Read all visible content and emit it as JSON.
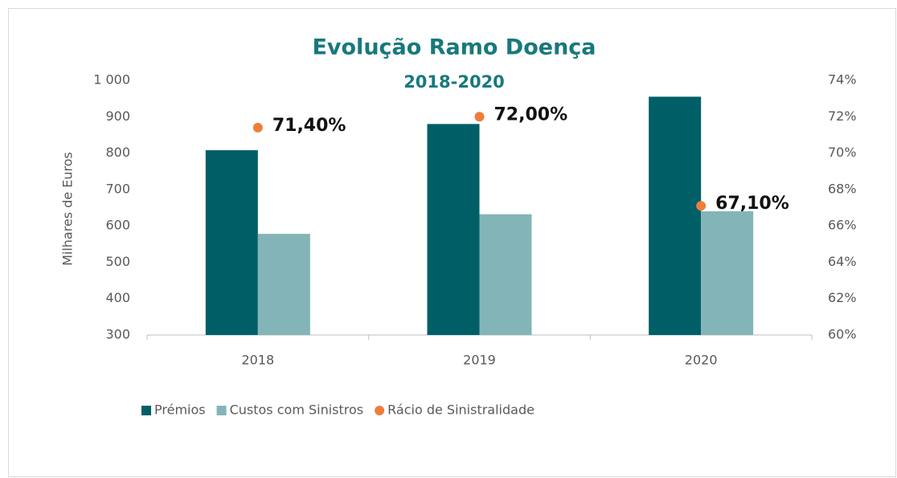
{
  "chart_data": {
    "type": "bar",
    "title": "Evolução Ramo Doença",
    "subtitle": "2018-2020",
    "y_label": "Milhares de Euros",
    "categories": [
      "2018",
      "2019",
      "2020"
    ],
    "series": [
      {
        "name": "Prémios",
        "color": "#005f66",
        "values": [
          808,
          880,
          955
        ]
      },
      {
        "name": "Custos com Sinistros",
        "color": "#83b5b8",
        "values": [
          578,
          632,
          640
        ]
      },
      {
        "name": "Rácio de Sinistralidade",
        "color": "#ef7d3a",
        "type": "scatter",
        "axis": "y2",
        "values": [
          71.4,
          72.0,
          67.1
        ],
        "value_labels": [
          "71,40%",
          "72,00%",
          "67,10%"
        ]
      }
    ],
    "ylim": [
      300,
      1000
    ],
    "yticks": [
      300,
      400,
      500,
      600,
      700,
      800,
      900,
      {
        "value": 1000,
        "label": "1 000"
      }
    ],
    "y2lim": [
      60,
      74
    ],
    "y2ticks": [
      {
        "value": 60,
        "label": "60%"
      },
      {
        "value": 62,
        "label": "62%"
      },
      {
        "value": 64,
        "label": "64%"
      },
      {
        "value": 66,
        "label": "66%"
      },
      {
        "value": 68,
        "label": "68%"
      },
      {
        "value": 70,
        "label": "70%"
      },
      {
        "value": 72,
        "label": "72%"
      },
      {
        "value": 74,
        "label": "74%"
      }
    ],
    "legend": "bottom",
    "grid": false
  }
}
